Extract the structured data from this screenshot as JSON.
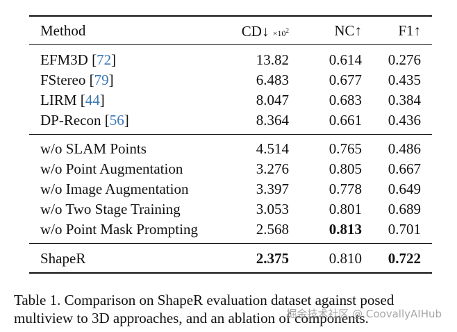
{
  "table": {
    "headers": {
      "method": "Method",
      "cd": "CD↓",
      "cd_unit_prefix": "×10",
      "cd_unit_exp": "2",
      "nc": "NC↑",
      "f1": "F1↑"
    },
    "baselines": [
      {
        "name": "EFM3D",
        "ref": "72",
        "cd": "13.82",
        "nc": "0.614",
        "f1": "0.276"
      },
      {
        "name": "FStereo",
        "ref": "79",
        "cd": "6.483",
        "nc": "0.677",
        "f1": "0.435"
      },
      {
        "name": "LIRM",
        "ref": "44",
        "cd": "8.047",
        "nc": "0.683",
        "f1": "0.384"
      },
      {
        "name": "DP-Recon",
        "ref": "56",
        "cd": "8.364",
        "nc": "0.661",
        "f1": "0.436"
      }
    ],
    "ablations": [
      {
        "name": "w/o SLAM Points",
        "cd": "4.514",
        "nc": "0.765",
        "f1": "0.486"
      },
      {
        "name": "w/o Point Augmentation",
        "cd": "3.276",
        "nc": "0.805",
        "f1": "0.667"
      },
      {
        "name": "w/o Image Augmentation",
        "cd": "3.397",
        "nc": "0.778",
        "f1": "0.649"
      },
      {
        "name": "w/o Two Stage Training",
        "cd": "3.053",
        "nc": "0.801",
        "f1": "0.689"
      },
      {
        "name": "w/o Point Mask Prompting",
        "cd": "2.568",
        "nc": "0.813",
        "f1": "0.701"
      }
    ],
    "ours": {
      "name": "ShapeR",
      "cd": "2.375",
      "nc": "0.810",
      "f1": "0.722"
    }
  },
  "caption": "Table 1. Comparison on ShapeR evaluation dataset against posed multiview to 3D approaches, and an ablation of components.",
  "watermark": "掘金技术社区 @ CoovallyAIHub",
  "colors": {
    "text": "#111111",
    "reference_link": "#3a78b5",
    "watermark": "#969696"
  }
}
